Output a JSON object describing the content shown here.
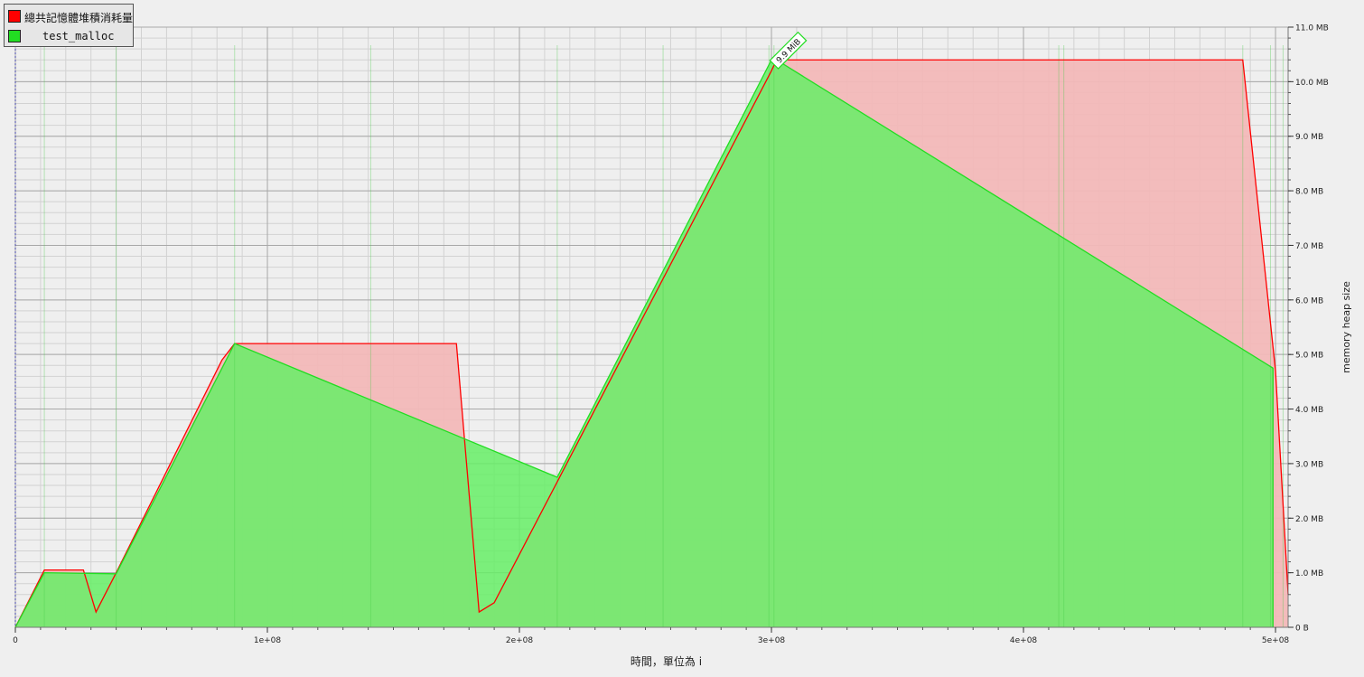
{
  "chart_data": {
    "type": "area",
    "xlabel": "時間，單位為 i",
    "ylabel": "memory heap size",
    "xlim": [
      0,
      505000000
    ],
    "ylim": [
      0,
      11000000
    ],
    "x_ticks": [
      {
        "value": 0,
        "label": "0"
      },
      {
        "value": 100000000,
        "label": "1e+08"
      },
      {
        "value": 200000000,
        "label": "2e+08"
      },
      {
        "value": 300000000,
        "label": "3e+08"
      },
      {
        "value": 400000000,
        "label": "4e+08"
      },
      {
        "value": 500000000,
        "label": "5e+08"
      }
    ],
    "y_ticks": [
      {
        "value": 0,
        "label": "0 B"
      },
      {
        "value": 1000000,
        "label": "1.0 MB"
      },
      {
        "value": 2000000,
        "label": "2.0 MB"
      },
      {
        "value": 3000000,
        "label": "3.0 MB"
      },
      {
        "value": 4000000,
        "label": "4.0 MB"
      },
      {
        "value": 5000000,
        "label": "5.0 MB"
      },
      {
        "value": 6000000,
        "label": "6.0 MB"
      },
      {
        "value": 7000000,
        "label": "7.0 MB"
      },
      {
        "value": 8000000,
        "label": "8.0 MB"
      },
      {
        "value": 9000000,
        "label": "9.0 MB"
      },
      {
        "value": 10000000,
        "label": "10.0 MB"
      },
      {
        "value": 11000000,
        "label": "11.0 MB"
      }
    ],
    "grid": true,
    "legend_position": "top-left",
    "y_axis_side": "right",
    "annotation": {
      "text": "9.9 MiB",
      "x": 301000000,
      "y": 10400000
    },
    "series": [
      {
        "name": "總共記憶體堆積消耗量",
        "color": "#ff0000",
        "fill": "#f2b8b8",
        "x": [
          0,
          11500000,
          27000000,
          32000000,
          40000000,
          82000000,
          87000000,
          175000000,
          184000000,
          190000000,
          300000000,
          302000000,
          487000000,
          500000000,
          505000000
        ],
        "y": [
          0,
          1050000,
          1050000,
          280000,
          1000000,
          4900000,
          5200000,
          5200000,
          280000,
          450000,
          10200000,
          10400000,
          10400000,
          4700000,
          600000
        ]
      },
      {
        "name": "test_malloc",
        "color": "#22dd22",
        "fill": "#66ee66",
        "x": [
          0,
          11500000,
          40000000,
          87000000,
          215000000,
          300000000,
          302000000,
          499000000,
          499000000
        ],
        "y": [
          0,
          1000000,
          980000,
          5200000,
          2750000,
          10400000,
          10400000,
          4750000,
          0
        ]
      }
    ],
    "drop_lines": [
      11500000,
      40000000,
      87000000,
      141000000,
      215000000,
      257000000,
      299000000,
      301000000,
      414000000,
      416000000,
      487000000,
      498000000,
      503000000
    ]
  }
}
